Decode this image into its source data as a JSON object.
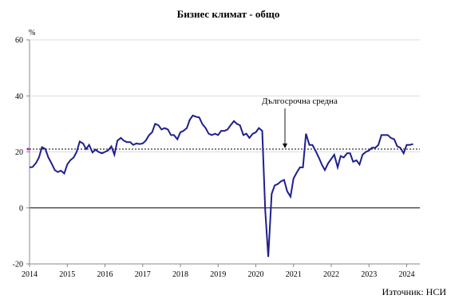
{
  "chart_data": {
    "type": "line",
    "title": "Бизнес климат - общо",
    "ylabel": "%",
    "xlabel": "",
    "ylim": [
      -20,
      60
    ],
    "yticks": [
      -20,
      0,
      20,
      40,
      60
    ],
    "xlim": [
      2014.0,
      2024.35
    ],
    "xticks": [
      "2014",
      "2015",
      "2016",
      "2017",
      "2018",
      "2019",
      "2020",
      "2021",
      "2022",
      "2023",
      "2024"
    ],
    "reference_line": {
      "label": "Дългосрочна средна",
      "value": 21,
      "style": "dashed"
    },
    "zero_line": true,
    "source": "Източник: НСИ",
    "series_color": "#1f1f8f",
    "series": [
      {
        "values": [
          [
            2014.0,
            14.5
          ],
          [
            2014.08,
            14.6
          ],
          [
            2014.17,
            16.0
          ],
          [
            2014.25,
            18.0
          ],
          [
            2014.33,
            21.7
          ],
          [
            2014.42,
            21.0
          ],
          [
            2014.5,
            18.0
          ],
          [
            2014.58,
            16.0
          ],
          [
            2014.67,
            13.5
          ],
          [
            2014.75,
            12.8
          ],
          [
            2014.83,
            13.3
          ],
          [
            2014.92,
            12.3
          ],
          [
            2015.0,
            15.5
          ],
          [
            2015.08,
            17.0
          ],
          [
            2015.17,
            18.0
          ],
          [
            2015.25,
            20.0
          ],
          [
            2015.33,
            23.7
          ],
          [
            2015.42,
            23.0
          ],
          [
            2015.5,
            21.0
          ],
          [
            2015.58,
            22.5
          ],
          [
            2015.67,
            19.8
          ],
          [
            2015.75,
            20.8
          ],
          [
            2015.83,
            20.0
          ],
          [
            2015.92,
            19.5
          ],
          [
            2016.0,
            20.0
          ],
          [
            2016.08,
            20.5
          ],
          [
            2016.17,
            22.0
          ],
          [
            2016.25,
            19.0
          ],
          [
            2016.33,
            24.0
          ],
          [
            2016.42,
            25.0
          ],
          [
            2016.5,
            24.0
          ],
          [
            2016.58,
            23.5
          ],
          [
            2016.67,
            23.5
          ],
          [
            2016.75,
            22.5
          ],
          [
            2016.83,
            23.0
          ],
          [
            2016.92,
            22.8
          ],
          [
            2017.0,
            23.0
          ],
          [
            2017.08,
            24.0
          ],
          [
            2017.17,
            26.0
          ],
          [
            2017.25,
            27.0
          ],
          [
            2017.33,
            30.0
          ],
          [
            2017.42,
            29.5
          ],
          [
            2017.5,
            28.0
          ],
          [
            2017.58,
            28.5
          ],
          [
            2017.67,
            28.0
          ],
          [
            2017.75,
            26.0
          ],
          [
            2017.83,
            26.0
          ],
          [
            2017.92,
            24.5
          ],
          [
            2018.0,
            27.0
          ],
          [
            2018.08,
            27.5
          ],
          [
            2018.17,
            28.5
          ],
          [
            2018.25,
            31.5
          ],
          [
            2018.33,
            33.0
          ],
          [
            2018.42,
            32.5
          ],
          [
            2018.5,
            32.3
          ],
          [
            2018.58,
            30.0
          ],
          [
            2018.67,
            28.5
          ],
          [
            2018.75,
            26.5
          ],
          [
            2018.83,
            26.0
          ],
          [
            2018.92,
            26.5
          ],
          [
            2019.0,
            26.0
          ],
          [
            2019.08,
            27.5
          ],
          [
            2019.17,
            27.5
          ],
          [
            2019.25,
            28.0
          ],
          [
            2019.33,
            29.5
          ],
          [
            2019.42,
            31.0
          ],
          [
            2019.5,
            30.0
          ],
          [
            2019.58,
            29.5
          ],
          [
            2019.67,
            26.0
          ],
          [
            2019.75,
            26.5
          ],
          [
            2019.83,
            25.0
          ],
          [
            2019.92,
            26.5
          ],
          [
            2020.0,
            27.0
          ],
          [
            2020.08,
            28.5
          ],
          [
            2020.17,
            27.5
          ],
          [
            2020.25,
            -1.0
          ],
          [
            2020.33,
            -17.5
          ],
          [
            2020.42,
            5.0
          ],
          [
            2020.5,
            8.0
          ],
          [
            2020.58,
            8.5
          ],
          [
            2020.67,
            9.5
          ],
          [
            2020.75,
            10.0
          ],
          [
            2020.83,
            6.0
          ],
          [
            2020.92,
            4.0
          ],
          [
            2021.0,
            10.5
          ],
          [
            2021.08,
            12.5
          ],
          [
            2021.17,
            14.5
          ],
          [
            2021.25,
            14.5
          ],
          [
            2021.33,
            26.5
          ],
          [
            2021.42,
            22.5
          ],
          [
            2021.5,
            22.5
          ],
          [
            2021.58,
            20.5
          ],
          [
            2021.67,
            18.0
          ],
          [
            2021.75,
            15.5
          ],
          [
            2021.83,
            13.5
          ],
          [
            2021.92,
            16.0
          ],
          [
            2022.0,
            17.5
          ],
          [
            2022.08,
            19.0
          ],
          [
            2022.17,
            14.5
          ],
          [
            2022.25,
            18.5
          ],
          [
            2022.33,
            18.0
          ],
          [
            2022.42,
            19.5
          ],
          [
            2022.5,
            19.5
          ],
          [
            2022.58,
            16.5
          ],
          [
            2022.67,
            17.0
          ],
          [
            2022.75,
            15.5
          ],
          [
            2022.83,
            19.0
          ],
          [
            2022.92,
            20.0
          ],
          [
            2023.0,
            20.5
          ],
          [
            2023.08,
            21.5
          ],
          [
            2023.17,
            21.5
          ],
          [
            2023.25,
            22.5
          ],
          [
            2023.33,
            26.0
          ],
          [
            2023.42,
            26.0
          ],
          [
            2023.5,
            26.0
          ],
          [
            2023.58,
            25.0
          ],
          [
            2023.67,
            24.5
          ],
          [
            2023.75,
            22.0
          ],
          [
            2023.83,
            21.5
          ],
          [
            2023.92,
            19.5
          ],
          [
            2024.0,
            22.5
          ],
          [
            2024.08,
            22.5
          ],
          [
            2024.17,
            22.8
          ]
        ]
      }
    ]
  }
}
